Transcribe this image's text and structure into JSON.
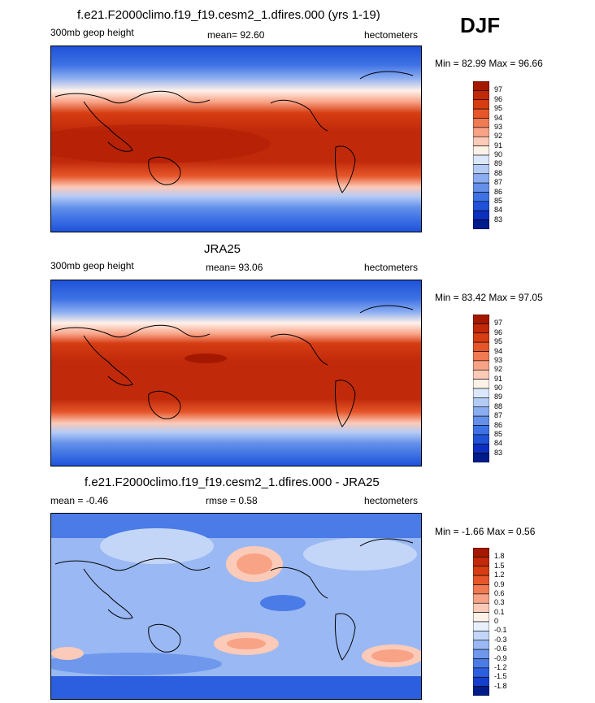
{
  "season": "DJF",
  "chart_data": [
    {
      "type": "heatmap",
      "title": "f.e21.F2000climo.f19_f19.cesm2_1.dfires.000 (yrs 1-19)",
      "left_label": "300mb geop height",
      "center_label": "mean=  92.60",
      "right_label": "hectometers",
      "minmax": "Min =  82.99 Max =  96.66",
      "levels": [
        "97",
        "96",
        "95",
        "94",
        "93",
        "92",
        "91",
        "90",
        "89",
        "88",
        "87",
        "86",
        "85",
        "84",
        "83"
      ],
      "colors": [
        "#a51800",
        "#c0290a",
        "#d63d13",
        "#e6562a",
        "#f07a52",
        "#f8a286",
        "#fccab8",
        "#fef1e8",
        "#dbe8fb",
        "#b4cbf6",
        "#8aacf1",
        "#6490ea",
        "#3e72e4",
        "#1f52d8",
        "#0c2fbf",
        "#001b8a"
      ],
      "mean": 92.6,
      "min": 82.99,
      "max": 96.66
    },
    {
      "type": "heatmap",
      "title": "JRA25",
      "left_label": "300mb geop height",
      "center_label": "mean=  93.06",
      "right_label": "hectometers",
      "minmax": "Min =  83.42 Max =  97.05",
      "levels": [
        "97",
        "96",
        "95",
        "94",
        "93",
        "92",
        "91",
        "90",
        "89",
        "88",
        "87",
        "86",
        "85",
        "84",
        "83"
      ],
      "colors": [
        "#a51800",
        "#c0290a",
        "#d63d13",
        "#e6562a",
        "#f07a52",
        "#f8a286",
        "#fccab8",
        "#fef1e8",
        "#dbe8fb",
        "#b4cbf6",
        "#8aacf1",
        "#6490ea",
        "#3e72e4",
        "#1f52d8",
        "#0c2fbf",
        "#001b8a"
      ],
      "mean": 93.06,
      "min": 83.42,
      "max": 97.05
    },
    {
      "type": "heatmap",
      "title": "f.e21.F2000climo.f19_f19.cesm2_1.dfires.000 - JRA25",
      "left_label": "mean =  -0.46",
      "center_label": "rmse =   0.58",
      "right_label": "hectometers",
      "minmax": "Min =  -1.66 Max =   0.56",
      "levels": [
        "1.8",
        "1.5",
        "1.2",
        "0.9",
        "0.6",
        "0.3",
        "0.1",
        "0",
        "-0.1",
        "-0.3",
        "-0.6",
        "-0.9",
        "-1.2",
        "-1.5",
        "-1.8"
      ],
      "colors": [
        "#a51800",
        "#c0290a",
        "#d63d13",
        "#e6562a",
        "#f07a52",
        "#f8a286",
        "#fccab8",
        "#fef1e8",
        "#e8f0fc",
        "#c3d6f8",
        "#9ab8f3",
        "#6f98ec",
        "#4a7be6",
        "#2c5fdf",
        "#163fc9",
        "#001b8a"
      ],
      "mean": -0.46,
      "rmse": 0.58,
      "min": -1.66,
      "max": 0.56
    }
  ]
}
